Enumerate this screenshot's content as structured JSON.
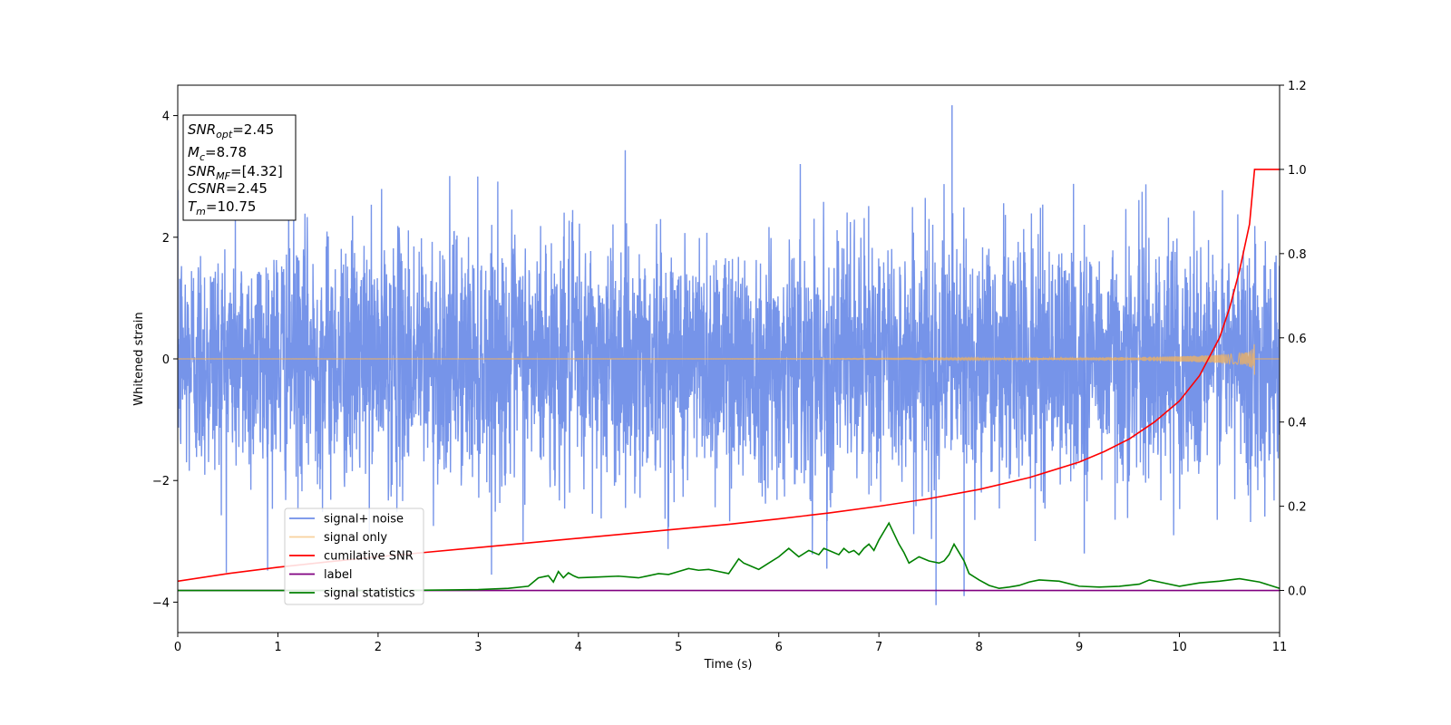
{
  "chart_data": {
    "type": "line",
    "xlabel": "Time (s)",
    "ylabel": "Whitened strain",
    "xlim": [
      0,
      11
    ],
    "ylim_left": [
      -4.5,
      4.5
    ],
    "ylim_right": [
      -0.1,
      1.2
    ],
    "xticks": [
      0,
      1,
      2,
      3,
      4,
      5,
      6,
      7,
      8,
      9,
      10,
      11
    ],
    "yticks_left": [
      -4,
      -2,
      0,
      2,
      4
    ],
    "yticks_right": [
      "0.0",
      "0.2",
      "0.4",
      "0.6",
      "0.8",
      "1.0",
      "1.2"
    ],
    "grid": false,
    "legend_position": "lower-left",
    "info_box": {
      "lines": [
        {
          "base": "SNR",
          "sub": "opt",
          "value": "=2.45"
        },
        {
          "base": "M",
          "sub": "c",
          "value": "=8.78"
        },
        {
          "base": "SNR",
          "sub": "MF",
          "value": "=[4.32]"
        },
        {
          "base": "CSNR",
          "sub": "",
          "value": "=2.45"
        },
        {
          "base": "T",
          "sub": "m",
          "value": "=10.75"
        }
      ]
    },
    "series": [
      {
        "name": "signal+ noise",
        "axis": "left",
        "color": "#6f8ee8",
        "description_values": {
          "sample_rate_hz": 400,
          "std": 1.0,
          "peak_max": 4.17,
          "peak_min": -4.05
        }
      },
      {
        "name": "signal only",
        "axis": "left",
        "color": "#f4b35b",
        "description_values": {
          "merger_time": 10.75,
          "peak_amplitude": 0.3
        }
      },
      {
        "name": "cumilative SNR",
        "axis": "right",
        "color": "#ff0000",
        "x": [
          0,
          0.5,
          1,
          1.5,
          2,
          2.5,
          3,
          3.5,
          4,
          4.5,
          5,
          5.5,
          6,
          6.5,
          7,
          7.5,
          8,
          8.5,
          9,
          9.25,
          9.5,
          9.75,
          10,
          10.2,
          10.4,
          10.5,
          10.6,
          10.7,
          10.75,
          11
        ],
        "y": [
          0.022,
          0.04,
          0.055,
          0.068,
          0.08,
          0.091,
          0.102,
          0.113,
          0.124,
          0.135,
          0.146,
          0.157,
          0.17,
          0.184,
          0.2,
          0.218,
          0.24,
          0.268,
          0.305,
          0.33,
          0.36,
          0.4,
          0.45,
          0.51,
          0.6,
          0.67,
          0.76,
          0.87,
          1.0,
          1.0
        ]
      },
      {
        "name": "label",
        "axis": "right",
        "color": "#800080",
        "x": [
          0,
          11
        ],
        "y": [
          0,
          0
        ]
      },
      {
        "name": "signal statistics",
        "axis": "right",
        "color": "#008000",
        "x": [
          0,
          2.2,
          3,
          3.3,
          3.5,
          3.6,
          3.7,
          3.75,
          3.8,
          3.85,
          3.9,
          3.95,
          4,
          4.2,
          4.4,
          4.6,
          4.7,
          4.8,
          4.9,
          5,
          5.1,
          5.2,
          5.3,
          5.4,
          5.5,
          5.6,
          5.65,
          5.7,
          5.8,
          5.9,
          6,
          6.1,
          6.15,
          6.2,
          6.3,
          6.4,
          6.45,
          6.5,
          6.6,
          6.65,
          6.7,
          6.75,
          6.8,
          6.85,
          6.9,
          6.95,
          7,
          7.05,
          7.1,
          7.15,
          7.2,
          7.25,
          7.3,
          7.4,
          7.5,
          7.6,
          7.65,
          7.7,
          7.75,
          7.8,
          7.85,
          7.9,
          8,
          8.1,
          8.2,
          8.3,
          8.4,
          8.5,
          8.6,
          8.8,
          9,
          9.2,
          9.4,
          9.6,
          9.7,
          9.8,
          10,
          10.2,
          10.4,
          10.6,
          10.8,
          11
        ],
        "y": [
          0,
          0,
          0.002,
          0.005,
          0.01,
          0.03,
          0.035,
          0.02,
          0.045,
          0.03,
          0.042,
          0.035,
          0.03,
          0.032,
          0.034,
          0.03,
          0.035,
          0.04,
          0.038,
          0.045,
          0.052,
          0.048,
          0.05,
          0.045,
          0.04,
          0.075,
          0.065,
          0.06,
          0.05,
          0.065,
          0.08,
          0.1,
          0.09,
          0.08,
          0.095,
          0.085,
          0.1,
          0.095,
          0.085,
          0.1,
          0.09,
          0.095,
          0.085,
          0.1,
          0.11,
          0.095,
          0.12,
          0.14,
          0.16,
          0.135,
          0.11,
          0.09,
          0.065,
          0.08,
          0.07,
          0.065,
          0.07,
          0.085,
          0.11,
          0.09,
          0.07,
          0.04,
          0.025,
          0.012,
          0.005,
          0.008,
          0.012,
          0.02,
          0.025,
          0.022,
          0.01,
          0.008,
          0.01,
          0.015,
          0.025,
          0.02,
          0.01,
          0.018,
          0.022,
          0.028,
          0.02,
          0.005
        ]
      }
    ]
  }
}
